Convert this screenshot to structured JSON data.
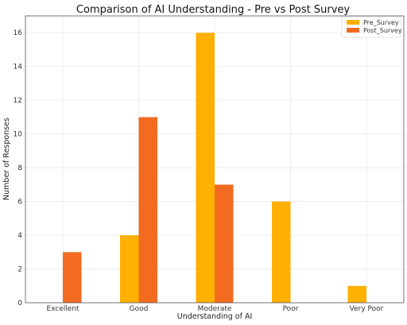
{
  "chart_data": {
    "type": "bar",
    "title": "Comparison of AI Understanding - Pre vs Post Survey",
    "xlabel": "Understanding of AI",
    "ylabel": "Number of Responses",
    "categories": [
      "Excellent",
      "Good",
      "Moderate",
      "Poor",
      "Very Poor"
    ],
    "series": [
      {
        "name": "Pre_Survey",
        "values": [
          0,
          4,
          16,
          6,
          1
        ],
        "color": "#FFB000"
      },
      {
        "name": "Post_Survey",
        "values": [
          3,
          11,
          7,
          0,
          0
        ],
        "color": "#F26B21"
      }
    ],
    "ylim": [
      0,
      17
    ],
    "yticks": [
      0,
      2,
      4,
      6,
      8,
      10,
      12,
      14,
      16
    ],
    "grid": true,
    "legend_position": "top-right"
  }
}
